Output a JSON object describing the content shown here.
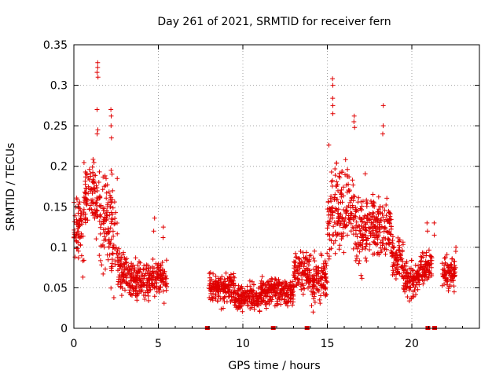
{
  "chart_data": {
    "type": "scatter",
    "title": "Day 261 of 2021, SRMTID for receiver fern",
    "xlabel": "GPS time / hours",
    "ylabel": "SRMTID / TECUs",
    "xlim": [
      0,
      24
    ],
    "ylim": [
      0,
      0.35
    ],
    "x_ticks": [
      0,
      5,
      10,
      15,
      20
    ],
    "x_tick_labels": [
      "0",
      "5",
      "10",
      "15",
      "20"
    ],
    "y_ticks": [
      0,
      0.05,
      0.1,
      0.15,
      0.2,
      0.25,
      0.3,
      0.35
    ],
    "y_tick_labels": [
      "0",
      "0.05",
      "0.1",
      "0.15",
      "0.2",
      "0.25",
      "0.3",
      "0.35"
    ],
    "grid": true,
    "marker": "plus",
    "color": "#e00000",
    "series": [
      {
        "name": "SRMTID",
        "segments": [
          {
            "x_start": 0.0,
            "x_end": 0.6,
            "mean": 0.12,
            "spread": 0.035
          },
          {
            "x_start": 0.6,
            "x_end": 1.3,
            "mean": 0.165,
            "spread": 0.03
          },
          {
            "x_start": 1.3,
            "x_end": 2.0,
            "mean": 0.14,
            "spread": 0.045
          },
          {
            "x_start": 2.0,
            "x_end": 2.6,
            "mean": 0.12,
            "spread": 0.05
          },
          {
            "x_start": 2.6,
            "x_end": 3.2,
            "mean": 0.07,
            "spread": 0.02
          },
          {
            "x_start": 3.2,
            "x_end": 5.5,
            "mean": 0.06,
            "spread": 0.02
          },
          {
            "x_start": 8.0,
            "x_end": 9.5,
            "mean": 0.05,
            "spread": 0.015
          },
          {
            "x_start": 9.5,
            "x_end": 11.0,
            "mean": 0.038,
            "spread": 0.012
          },
          {
            "x_start": 11.0,
            "x_end": 13.0,
            "mean": 0.045,
            "spread": 0.015
          },
          {
            "x_start": 13.0,
            "x_end": 14.0,
            "mean": 0.07,
            "spread": 0.02
          },
          {
            "x_start": 14.0,
            "x_end": 15.0,
            "mean": 0.06,
            "spread": 0.025
          },
          {
            "x_start": 15.0,
            "x_end": 16.5,
            "mean": 0.15,
            "spread": 0.045
          },
          {
            "x_start": 16.5,
            "x_end": 17.5,
            "mean": 0.12,
            "spread": 0.04
          },
          {
            "x_start": 17.5,
            "x_end": 18.8,
            "mean": 0.125,
            "spread": 0.03
          },
          {
            "x_start": 18.8,
            "x_end": 19.5,
            "mean": 0.085,
            "spread": 0.025
          },
          {
            "x_start": 19.5,
            "x_end": 20.5,
            "mean": 0.06,
            "spread": 0.018
          },
          {
            "x_start": 20.5,
            "x_end": 21.2,
            "mean": 0.075,
            "spread": 0.02
          },
          {
            "x_start": 21.8,
            "x_end": 22.6,
            "mean": 0.07,
            "spread": 0.018
          }
        ],
        "peaks": [
          {
            "x": 1.4,
            "values": [
              0.328,
              0.322,
              0.316,
              0.31,
              0.27,
              0.245,
              0.24
            ]
          },
          {
            "x": 2.2,
            "values": [
              0.27,
              0.262,
              0.25,
              0.235,
              0.195
            ]
          },
          {
            "x": 4.75,
            "values": [
              0.136,
              0.12
            ]
          },
          {
            "x": 5.3,
            "values": [
              0.125,
              0.112
            ]
          },
          {
            "x": 15.3,
            "values": [
              0.308,
              0.3,
              0.284,
              0.275,
              0.265
            ]
          },
          {
            "x": 16.6,
            "values": [
              0.262,
              0.255,
              0.248
            ]
          },
          {
            "x": 18.3,
            "values": [
              0.275,
              0.25,
              0.24
            ]
          },
          {
            "x": 20.9,
            "values": [
              0.13,
              0.12
            ]
          },
          {
            "x": 21.3,
            "values": [
              0.13,
              0.115
            ]
          },
          {
            "x": 22.6,
            "values": [
              0.1,
              0.095
            ]
          }
        ]
      }
    ],
    "zero_points_x": [
      7.9,
      11.8,
      13.8,
      20.95,
      21.35
    ]
  }
}
